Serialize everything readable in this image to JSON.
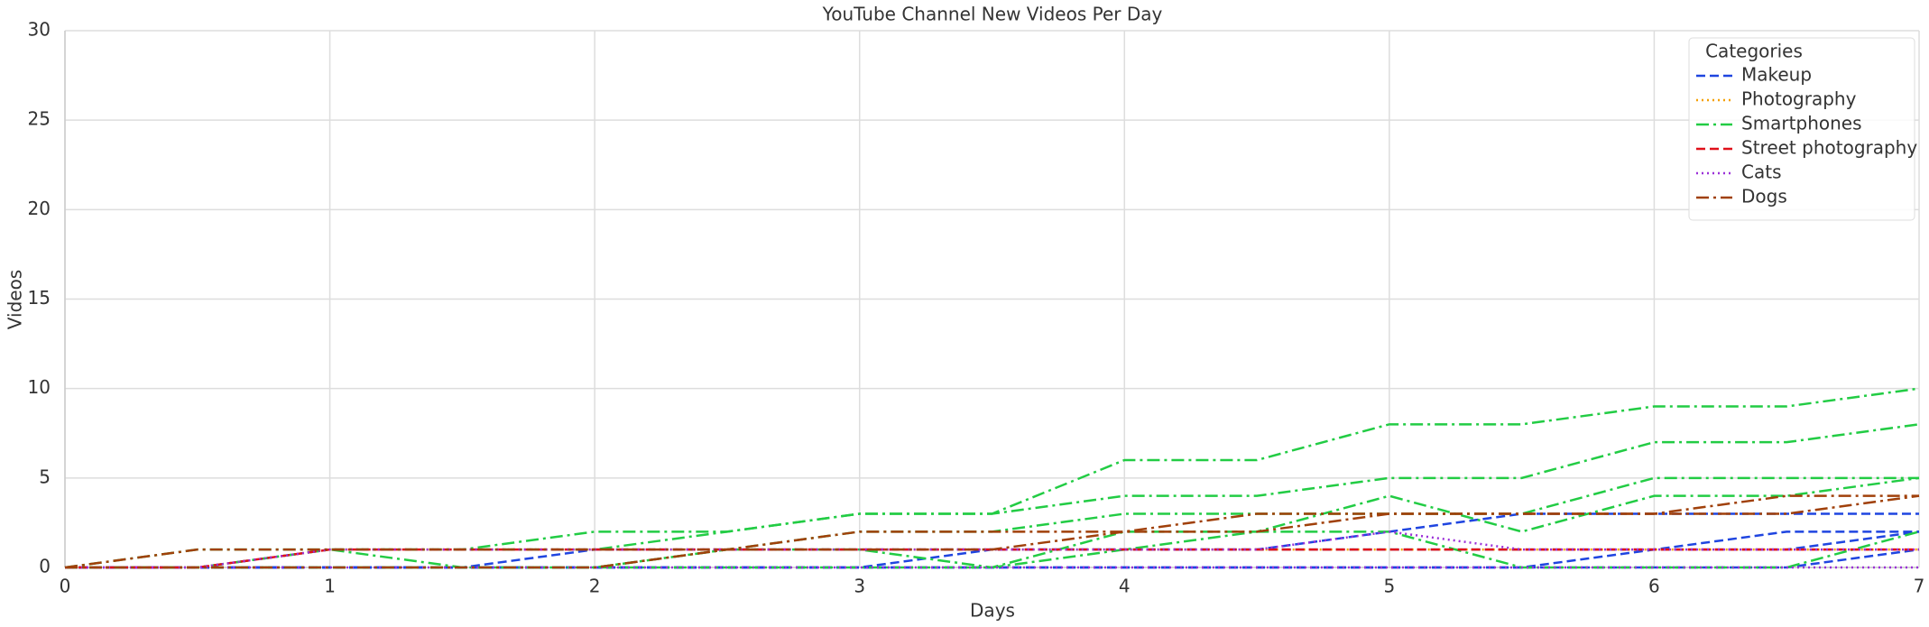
{
  "chart_data": {
    "type": "line",
    "title": "YouTube Channel New Videos Per Day",
    "xlabel": "Days",
    "ylabel": "Videos",
    "x": [
      0,
      0.5,
      1,
      1.5,
      2,
      2.5,
      3,
      3.5,
      4,
      4.5,
      5,
      5.5,
      6,
      6.5,
      7
    ],
    "xlim": [
      0,
      7
    ],
    "xticks": [
      0,
      1,
      2,
      3,
      4,
      5,
      6,
      7
    ],
    "ylim": [
      0,
      30
    ],
    "yticks": [
      0,
      5,
      10,
      15,
      20,
      25,
      30
    ],
    "grid": true,
    "legend_title": "Categories",
    "legend": "upper right",
    "series": [
      {
        "name": "Makeup",
        "color": "#1f45e0",
        "dash": "dashed",
        "lines": [
          [
            0,
            0,
            0,
            0,
            1,
            1,
            1,
            1,
            1,
            1,
            2,
            3,
            3,
            3,
            3
          ],
          [
            0,
            0,
            0,
            0,
            0,
            0,
            0,
            1,
            1,
            1,
            1,
            1,
            1,
            2,
            2
          ],
          [
            0,
            0,
            0,
            0,
            0,
            0,
            0,
            0,
            0,
            0,
            0,
            0,
            1,
            1,
            2
          ],
          [
            0,
            0,
            0,
            0,
            0,
            0,
            0,
            0,
            0,
            0,
            0,
            0,
            0,
            0,
            1
          ]
        ]
      },
      {
        "name": "Photography",
        "color": "#f5a000",
        "dash": "dotted",
        "lines": [
          [
            0,
            0,
            1,
            1,
            1,
            1,
            1,
            1,
            1,
            1,
            1,
            1,
            1,
            1,
            1
          ]
        ]
      },
      {
        "name": "Smartphones",
        "color": "#22cc44",
        "dash": "dashdot",
        "lines": [
          [
            0,
            1,
            1,
            1,
            2,
            2,
            3,
            3,
            6,
            6,
            8,
            8,
            9,
            9,
            10
          ],
          [
            0,
            0,
            1,
            1,
            1,
            2,
            3,
            3,
            4,
            4,
            5,
            5,
            7,
            7,
            8
          ],
          [
            0,
            0,
            0,
            0,
            0,
            1,
            2,
            2,
            3,
            3,
            3,
            3,
            5,
            5,
            5
          ],
          [
            0,
            0,
            1,
            0,
            0,
            1,
            1,
            0,
            2,
            2,
            4,
            2,
            4,
            4,
            5
          ],
          [
            0,
            0,
            0,
            0,
            0,
            0,
            0,
            0,
            1,
            2,
            2,
            0,
            0,
            0,
            2
          ]
        ]
      },
      {
        "name": "Street photography",
        "color": "#e0101a",
        "dash": "dashed",
        "lines": [
          [
            0,
            0,
            1,
            1,
            1,
            1,
            1,
            1,
            1,
            1,
            1,
            1,
            1,
            1,
            1
          ]
        ]
      },
      {
        "name": "Cats",
        "color": "#9b30d8",
        "dash": "dotted",
        "lines": [
          [
            0,
            0,
            1,
            1,
            1,
            1,
            1,
            1,
            1,
            1,
            2,
            1,
            1,
            1,
            1
          ],
          [
            0,
            0,
            0,
            0,
            0,
            0,
            0,
            0,
            0,
            0,
            0,
            0,
            0,
            0,
            0
          ]
        ]
      },
      {
        "name": "Dogs",
        "color": "#a0400a",
        "dash": "dashdot",
        "lines": [
          [
            0,
            1,
            1,
            1,
            1,
            1,
            2,
            2,
            2,
            3,
            3,
            3,
            3,
            4,
            4
          ],
          [
            0,
            0,
            0,
            0,
            0,
            1,
            1,
            1,
            2,
            2,
            3,
            3,
            3,
            3,
            4
          ]
        ]
      }
    ]
  }
}
